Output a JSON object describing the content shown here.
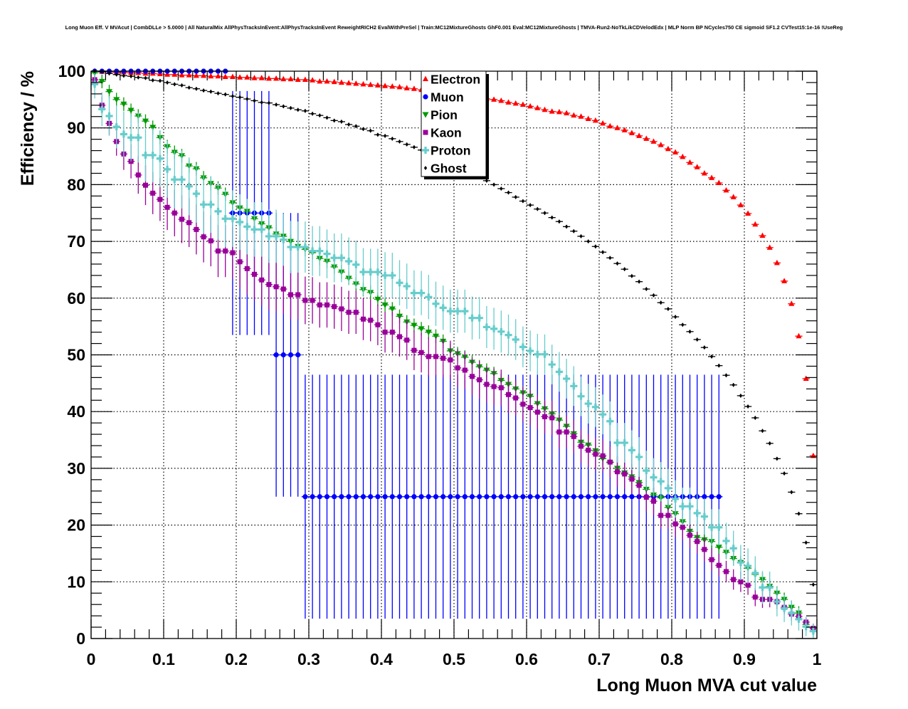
{
  "chart_data": {
    "type": "scatter",
    "title": "Long Muon Eff. V MVAcut | CombDLLe > 5.0000 | All NaturalMix AllPhysTracksInEvent:AllPhysTracksInEvent ReweightRICH2 EvalWithPreSel | Train:MC12MixtureGhosts GhF0.001 Eval:MC12MixtureGhosts | TMVA-Run2-NoTkLikCDVelodEdx | MLP Norm BP NCycles750 CE sigmoid SF1.2 CVTest15:1e-16 !UseReg",
    "xlabel": "Long Muon MVA cut value",
    "ylabel": "Efficiency / %",
    "xlim": [
      0,
      1
    ],
    "ylim": [
      0,
      100
    ],
    "grid": true,
    "legend_placement": "top-center",
    "xticks": [
      "0",
      "0.1",
      "0.2",
      "0.3",
      "0.4",
      "0.5",
      "0.6",
      "0.7",
      "0.8",
      "0.9",
      "1"
    ],
    "yticks": [
      "0",
      "10",
      "20",
      "30",
      "40",
      "50",
      "60",
      "70",
      "80",
      "90",
      "100"
    ],
    "x_start": 0.005,
    "x_step": 0.01,
    "x_bin_halfwidth": 0.005,
    "series": [
      {
        "name": "Electron",
        "marker": "triangle-up",
        "color": "#ff0000",
        "err": 0.3,
        "values": [
          100,
          99.9,
          99.9,
          99.8,
          99.8,
          99.7,
          99.7,
          99.6,
          99.6,
          99.5,
          99.4,
          99.4,
          99.3,
          99.3,
          99.2,
          99.2,
          99.1,
          99.1,
          99,
          99,
          98.9,
          98.9,
          98.8,
          98.8,
          98.7,
          98.7,
          98.6,
          98.6,
          98.5,
          98.5,
          98.4,
          98.2,
          98.2,
          98.1,
          98,
          97.9,
          97.8,
          97.7,
          97.6,
          97.5,
          97.4,
          97.3,
          97.2,
          97,
          96.9,
          96.7,
          96.5,
          96.3,
          96.1,
          95.9,
          95.7,
          95.5,
          95.4,
          95.2,
          95.1,
          95,
          94.8,
          94.5,
          94.3,
          94.1,
          93.8,
          93.5,
          93.2,
          92.9,
          92.8,
          92.6,
          92.2,
          92,
          91.6,
          91.3,
          90.8,
          90.3,
          90,
          89.6,
          89.1,
          88.6,
          88.1,
          87.6,
          87,
          86.3,
          85.7,
          84.9,
          83.9,
          83.1,
          82,
          81.2,
          80.3,
          79,
          77.8,
          76.4,
          74.9,
          73,
          71,
          68.9,
          66.2,
          63,
          59,
          53.3,
          45.8,
          32.2
        ]
      },
      {
        "name": "Muon",
        "marker": "circle",
        "color": "#0000ff",
        "values": [
          100,
          100,
          100,
          100,
          100,
          100,
          100,
          100,
          100,
          100,
          100,
          100,
          100,
          100,
          100,
          100,
          100,
          100,
          100,
          75,
          75,
          75,
          75,
          75,
          75,
          50,
          50,
          50,
          50,
          25,
          25,
          25,
          25,
          25,
          25,
          25,
          25,
          25,
          25,
          25,
          25,
          25,
          25,
          25,
          25,
          25,
          25,
          25,
          25,
          25,
          25,
          25,
          25,
          25,
          25,
          25,
          25,
          25,
          25,
          25,
          25,
          25,
          25,
          25,
          25,
          25,
          25,
          25,
          25,
          25,
          25,
          25,
          25,
          25,
          25,
          25,
          25,
          25,
          25,
          25,
          25,
          25,
          25,
          25,
          25,
          25,
          25,
          null,
          null,
          null,
          null,
          null,
          null,
          null,
          null,
          null,
          null,
          null,
          null,
          null
        ],
        "err": [
          0,
          0,
          0,
          0,
          0,
          0,
          0,
          0,
          0,
          0,
          0,
          0,
          0,
          0,
          0,
          0,
          0,
          0,
          0,
          21.5,
          21.5,
          21.5,
          21.5,
          21.5,
          21.5,
          25,
          25,
          25,
          25,
          21.5,
          21.5,
          21.5,
          21.5,
          21.5,
          21.5,
          21.5,
          21.5,
          21.5,
          21.5,
          21.5,
          21.5,
          21.5,
          21.5,
          21.5,
          21.5,
          21.5,
          21.5,
          21.5,
          21.5,
          21.5,
          21.5,
          21.5,
          21.5,
          21.5,
          21.5,
          21.5,
          21.5,
          21.5,
          21.5,
          21.5,
          21.5,
          21.5,
          21.5,
          21.5,
          21.5,
          21.5,
          21.5,
          21.5,
          21.5,
          21.5,
          21.5,
          21.5,
          21.5,
          21.5,
          21.5,
          21.5,
          21.5,
          21.5,
          21.5,
          21.5,
          21.5,
          21.5,
          21.5,
          21.5,
          21.5,
          21.5,
          21.5,
          0,
          0,
          0,
          0,
          0,
          0,
          0,
          0,
          0,
          0,
          0,
          0,
          0
        ]
      },
      {
        "name": "Pion",
        "marker": "triangle-down",
        "color": "#009900",
        "err": 1.2,
        "values": [
          99.7,
          98.2,
          96.4,
          95,
          94.2,
          93.1,
          92.1,
          91.2,
          90.1,
          88.3,
          86.7,
          85.7,
          85.1,
          83.3,
          82.8,
          81.2,
          80.2,
          79.4,
          78.3,
          76.8,
          75.9,
          75.3,
          74,
          73.1,
          72.4,
          71.3,
          70.9,
          70,
          69.1,
          68.6,
          68,
          67,
          66.5,
          65.5,
          64.6,
          63.5,
          62.5,
          61.5,
          61,
          59.8,
          58.8,
          58.1,
          56.8,
          55.8,
          55.2,
          54.6,
          54,
          53.3,
          52.4,
          50.7,
          50.2,
          49.6,
          48.7,
          47.9,
          47.3,
          46.7,
          45.5,
          44.8,
          44,
          43.3,
          42.7,
          41.4,
          40.5,
          39.6,
          38.5,
          37.4,
          36.1,
          34.6,
          34.1,
          33.1,
          31.7,
          31,
          30,
          29.2,
          28.5,
          27.5,
          26.3,
          25.3,
          24.8,
          23.1,
          22,
          20.6,
          18.9,
          17.8,
          17.4,
          17.1,
          16.1,
          15.2,
          14.1,
          13.4,
          12.4,
          11.3,
          10.4,
          9.2,
          8,
          6.9,
          5.5,
          4.5,
          2.5,
          1.4
        ]
      },
      {
        "name": "Kaon",
        "marker": "square",
        "color": "#990099",
        "values": [
          98.5,
          94,
          90.8,
          87.6,
          85.4,
          84.1,
          81.7,
          79.9,
          78.5,
          77.4,
          76,
          75,
          73.9,
          73.3,
          72.1,
          70.8,
          70.1,
          68.3,
          68.3,
          68,
          66.4,
          65.2,
          64.2,
          63.2,
          62.4,
          62,
          61.6,
          60.6,
          60.6,
          59.6,
          59.6,
          58.8,
          58.8,
          58.5,
          58.1,
          57.5,
          57.5,
          56.3,
          56.1,
          55.3,
          54,
          54,
          53.2,
          52.6,
          50.8,
          50.4,
          49.7,
          49.7,
          49.4,
          49.1,
          47.7,
          47.3,
          46.2,
          45.6,
          44.8,
          44.4,
          44.2,
          43,
          42.4,
          41.3,
          40.7,
          39.9,
          39.1,
          38.9,
          36.4,
          36.4,
          35.6,
          33.9,
          33.2,
          32.5,
          32.2,
          31.1,
          29.4,
          29,
          28.1,
          27,
          24.9,
          24.2,
          21.7,
          21.7,
          20.2,
          19.6,
          18.2,
          17.1,
          15.7,
          13.9,
          12.9,
          11.8,
          10.4,
          10,
          9.4,
          7.3,
          6.9,
          6.9,
          6.5,
          5.5,
          4.3,
          3.9,
          2.9,
          1.8
        ],
        "err": [
          0.8,
          1.5,
          2,
          2.5,
          2.8,
          3,
          3.3,
          3.5,
          3.7,
          3.8,
          4,
          4.1,
          4.2,
          4.3,
          4.4,
          4.5,
          4.5,
          4.6,
          4.6,
          4.6,
          4.6,
          4.6,
          4.5,
          4.5,
          4.5,
          4.4,
          4.4,
          4.3,
          4.3,
          4.2,
          4.1,
          4,
          4,
          3.9,
          3.9,
          3.8,
          3.8,
          3.7,
          3.7,
          3.6,
          3.6,
          3.6,
          3.5,
          3.5,
          3.5,
          3.5,
          3.4,
          3.4,
          3.4,
          3.4,
          3.3,
          3.3,
          3.3,
          3.3,
          3.2,
          3.2,
          3.2,
          3.2,
          3.1,
          3.1,
          3.1,
          3,
          3,
          3,
          3,
          2.9,
          2.9,
          2.9,
          2.8,
          2.8,
          2.8,
          2.7,
          2.7,
          2.6,
          2.6,
          2.5,
          2.5,
          2.4,
          2.4,
          2.3,
          2.3,
          2.2,
          2.2,
          2.1,
          2.1,
          2,
          2,
          1.9,
          1.8,
          1.8,
          1.7,
          1.6,
          1.5,
          1.4,
          1.3,
          1.2,
          1.1,
          1,
          0.9,
          0.8
        ]
      },
      {
        "name": "Proton",
        "marker": "cross",
        "color": "#66cccc",
        "values": [
          97.7,
          93.3,
          92.1,
          90.2,
          88.9,
          88.3,
          88.3,
          85.2,
          85.2,
          84.6,
          82.7,
          80.9,
          80.9,
          79.7,
          78.4,
          76.5,
          76.5,
          75.3,
          74,
          74,
          73.4,
          72.6,
          72.1,
          72.1,
          70.9,
          70.9,
          70.3,
          69,
          69,
          69,
          68.3,
          68.3,
          67.8,
          67.1,
          67.1,
          66.5,
          65.9,
          64.6,
          64.6,
          64.6,
          64,
          64,
          62.7,
          62.1,
          60.9,
          60.9,
          60.2,
          59,
          58.3,
          57.7,
          57.7,
          57.7,
          56.5,
          56.5,
          54.9,
          54.6,
          54.1,
          53.5,
          52.7,
          51.4,
          50.7,
          50.1,
          50.1,
          48.3,
          47,
          45.8,
          44.5,
          42.7,
          41.4,
          40.8,
          39.5,
          38.3,
          34.5,
          34.5,
          33.2,
          32,
          29.6,
          28.4,
          27.7,
          26.5,
          24.6,
          23.3,
          23.3,
          22.1,
          21.5,
          19.6,
          19.6,
          17.2,
          15.9,
          13.4,
          12.8,
          11.5,
          9,
          9,
          6.5,
          5.3,
          4.5,
          3.4,
          2.1,
          1.3
        ],
        "err": [
          2.5,
          3,
          3.5,
          3.8,
          4,
          4.2,
          4.4,
          4.6,
          4.8,
          5,
          5,
          5.1,
          5.1,
          5.1,
          5.1,
          5.1,
          5,
          5,
          5,
          5,
          4.9,
          4.9,
          4.8,
          4.8,
          4.7,
          4.7,
          4.6,
          4.6,
          4.5,
          4.5,
          4.4,
          4.4,
          4.3,
          4.3,
          4.3,
          4.2,
          4.2,
          4.2,
          4.1,
          4.1,
          4.1,
          4,
          4,
          4,
          4,
          3.9,
          3.9,
          3.9,
          3.9,
          3.8,
          3.8,
          3.8,
          3.8,
          3.7,
          3.7,
          3.7,
          3.7,
          3.6,
          3.6,
          3.6,
          3.6,
          3.6,
          3.5,
          3.5,
          3.5,
          3.5,
          3.5,
          3.5,
          3.5,
          3.5,
          3.5,
          3.5,
          3.5,
          3.5,
          3.5,
          3.5,
          3.5,
          3.4,
          3.4,
          3.4,
          3.3,
          3.3,
          3.3,
          3.3,
          3.2,
          3.2,
          3.2,
          3.2,
          3.1,
          3.1,
          3.1,
          3,
          2.9,
          2.8,
          2.6,
          2.4,
          2.2,
          2,
          1.7,
          1.3
        ]
      },
      {
        "name": "Ghost",
        "marker": "diamond",
        "color": "#000000",
        "err": 0.3,
        "values": [
          100,
          99.9,
          99.6,
          99.4,
          99.2,
          99.1,
          98.9,
          98.8,
          98.4,
          98.3,
          98,
          97.7,
          97.5,
          97.1,
          96.9,
          96.6,
          96.4,
          96.1,
          95.9,
          95.6,
          95.4,
          95.1,
          94.8,
          94.5,
          94.4,
          94.1,
          93.8,
          93.5,
          93.2,
          93,
          92.5,
          92.2,
          91.8,
          91.3,
          91.1,
          90.6,
          90.3,
          89.8,
          89.5,
          88.8,
          88.6,
          88.1,
          87.6,
          87.1,
          86.6,
          86.1,
          85.6,
          85.1,
          84.6,
          84,
          83.4,
          82.8,
          82.1,
          81.4,
          80.7,
          80,
          79.3,
          78.6,
          77.8,
          77.1,
          76.4,
          75.7,
          75,
          74.2,
          73.5,
          72.6,
          71.8,
          70.9,
          70,
          69.1,
          68.1,
          67.1,
          66.1,
          65.1,
          63.9,
          62.9,
          61.6,
          60.5,
          59.2,
          58.1,
          56.7,
          55.3,
          54.1,
          52.7,
          51.3,
          49.7,
          48.1,
          46.4,
          44.7,
          42.8,
          40.9,
          38.9,
          36.6,
          34.4,
          31.7,
          29.1,
          25.8,
          22,
          16.9,
          9.5
        ]
      }
    ]
  }
}
